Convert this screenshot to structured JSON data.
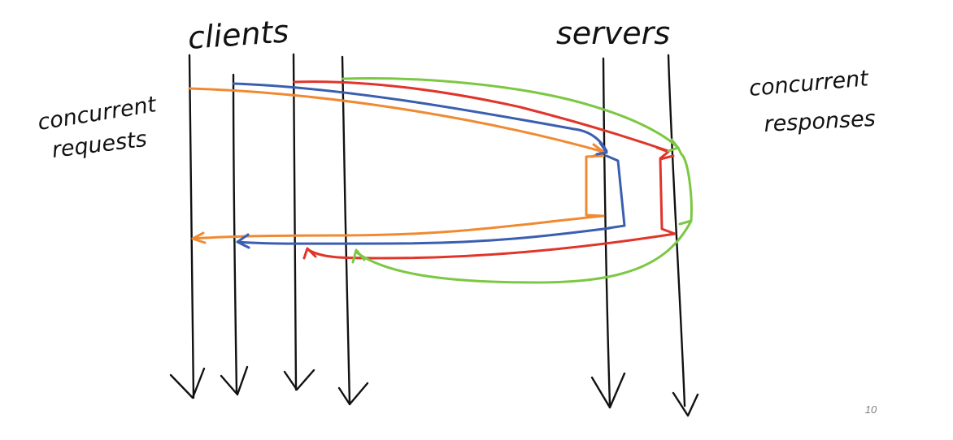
{
  "labels": {
    "clients": "clients",
    "servers": "servers",
    "requests_line1": "concurrent",
    "requests_line2": "requests",
    "responses_line1": "concurrent",
    "responses_line2": "responses"
  },
  "page_number": "10",
  "colors": {
    "timeline": "#111111",
    "orange": "#f08a32",
    "blue": "#3b5fb0",
    "red": "#e0352b",
    "green": "#7cc843",
    "page_number": "#7f7f7f"
  }
}
